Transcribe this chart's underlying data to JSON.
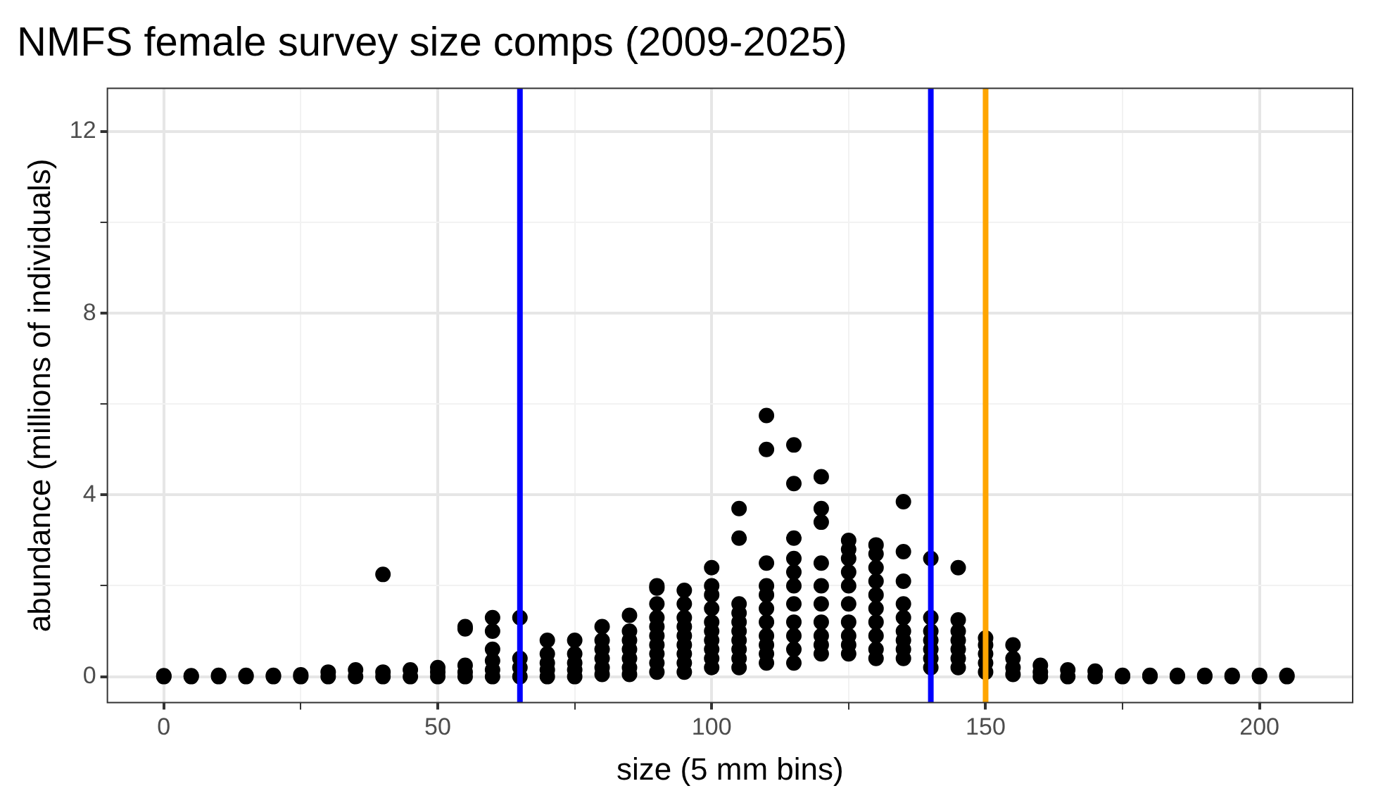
{
  "chart_data": {
    "type": "scatter",
    "title": "NMFS female survey size comps (2009-2025)",
    "xlabel": "size (5 mm bins)",
    "ylabel": "abundance (millions of individuals)",
    "xlim": [
      -10.3,
      217
    ],
    "xticks": [
      0,
      {
        "value": 25,
        "label": null
      },
      50,
      {
        "value": 75,
        "label": null
      },
      100,
      {
        "value": 125,
        "label": null
      },
      150,
      {
        "value": 175,
        "label": null
      },
      200
    ],
    "ylim": [
      -0.57,
      12.95
    ],
    "yticks": [
      0,
      {
        "value": 2,
        "label": null
      },
      4,
      {
        "value": 6,
        "label": null
      },
      8,
      {
        "value": 10,
        "label": null
      },
      12
    ],
    "grid": true,
    "legend": false,
    "marker": "circle",
    "series": [
      {
        "color": "#000000",
        "x": [
          0,
          0,
          5,
          5,
          10,
          10,
          15,
          15,
          20,
          20,
          25,
          25,
          30,
          30,
          35,
          35,
          40,
          40,
          40,
          45,
          45,
          50,
          50,
          50,
          55,
          55,
          55,
          55,
          55,
          60,
          60,
          60,
          60,
          60,
          60,
          65,
          65,
          65,
          65,
          70,
          70,
          70,
          70,
          70,
          75,
          75,
          75,
          75,
          75,
          80,
          80,
          80,
          80,
          80,
          80,
          85,
          85,
          85,
          85,
          85,
          85,
          85,
          90,
          90,
          90,
          90,
          90,
          90,
          90,
          90,
          90,
          90,
          95,
          95,
          95,
          95,
          95,
          95,
          95,
          95,
          95,
          100,
          100,
          100,
          100,
          100,
          100,
          100,
          100,
          100,
          100,
          105,
          105,
          105,
          105,
          105,
          105,
          105,
          105,
          105,
          105,
          110,
          110,
          110,
          110,
          110,
          110,
          110,
          110,
          110,
          110,
          110,
          115,
          115,
          115,
          115,
          115,
          115,
          115,
          115,
          115,
          115,
          115,
          120,
          120,
          120,
          120,
          120,
          120,
          120,
          120,
          120,
          120,
          125,
          125,
          125,
          125,
          125,
          125,
          125,
          125,
          125,
          125,
          130,
          130,
          130,
          130,
          130,
          130,
          130,
          130,
          130,
          130,
          135,
          135,
          135,
          135,
          135,
          135,
          135,
          135,
          135,
          140,
          140,
          140,
          140,
          140,
          140,
          140,
          145,
          145,
          145,
          145,
          145,
          145,
          145,
          150,
          150,
          150,
          150,
          150,
          155,
          155,
          155,
          155,
          160,
          160,
          160,
          165,
          165,
          170,
          170,
          175,
          175,
          180,
          180,
          185,
          185,
          190,
          190,
          195,
          195,
          200,
          200,
          205,
          205
        ],
        "values": [
          0,
          0.02,
          0,
          0.02,
          0,
          0.03,
          0,
          0.03,
          0,
          0.03,
          0,
          0.04,
          0,
          0.1,
          0,
          0.15,
          0,
          0.1,
          2.25,
          0,
          0.15,
          0,
          0.1,
          0.2,
          0,
          0.1,
          0.25,
          1.05,
          1.1,
          0,
          0.15,
          0.35,
          0.6,
          1.0,
          1.3,
          0,
          0.2,
          0.4,
          1.3,
          0,
          0.15,
          0.3,
          0.5,
          0.8,
          0,
          0.15,
          0.3,
          0.5,
          0.8,
          0.05,
          0.2,
          0.4,
          0.6,
          0.8,
          1.1,
          0.05,
          0.2,
          0.4,
          0.6,
          0.8,
          1.0,
          1.35,
          0.1,
          0.3,
          0.5,
          0.7,
          0.9,
          1.1,
          1.3,
          1.6,
          1.95,
          2.0,
          0.1,
          0.3,
          0.5,
          0.7,
          0.9,
          1.1,
          1.3,
          1.6,
          1.9,
          0.2,
          0.4,
          0.6,
          0.8,
          1.0,
          1.2,
          1.5,
          1.8,
          2.0,
          2.4,
          0.2,
          0.4,
          0.6,
          0.8,
          1.0,
          1.2,
          1.4,
          1.6,
          3.05,
          3.7,
          0.3,
          0.5,
          0.7,
          0.9,
          1.2,
          1.5,
          1.8,
          2.0,
          2.5,
          5.0,
          5.75,
          0.3,
          0.6,
          0.9,
          1.2,
          1.6,
          2.0,
          2.3,
          2.6,
          3.05,
          4.25,
          5.1,
          0.5,
          0.7,
          0.9,
          1.2,
          1.6,
          2.0,
          2.5,
          3.4,
          3.7,
          4.4,
          0.5,
          0.7,
          0.9,
          1.2,
          1.6,
          2.0,
          2.3,
          2.6,
          2.8,
          3.0,
          0.4,
          0.6,
          0.9,
          1.2,
          1.5,
          1.8,
          2.1,
          2.4,
          2.7,
          2.9,
          0.4,
          0.6,
          0.8,
          1.0,
          1.3,
          1.6,
          2.1,
          2.75,
          3.85,
          0.2,
          0.4,
          0.6,
          0.8,
          1.0,
          1.3,
          2.6,
          0.2,
          0.4,
          0.6,
          0.8,
          1.0,
          1.25,
          2.4,
          0.1,
          0.3,
          0.5,
          0.7,
          0.85,
          0.05,
          0.2,
          0.4,
          0.7,
          0,
          0.1,
          0.25,
          0,
          0.15,
          0,
          0.12,
          0,
          0.03,
          0,
          0.03,
          0,
          0.03,
          0,
          0.03,
          0,
          0.03,
          0,
          0.03,
          0,
          0.03
        ]
      }
    ],
    "ref_lines": [
      {
        "axis": "x",
        "value": 65,
        "color": "#0000ff"
      },
      {
        "axis": "x",
        "value": 140,
        "color": "#0000ff"
      },
      {
        "axis": "x",
        "value": 150,
        "color": "#ffa500"
      }
    ]
  }
}
